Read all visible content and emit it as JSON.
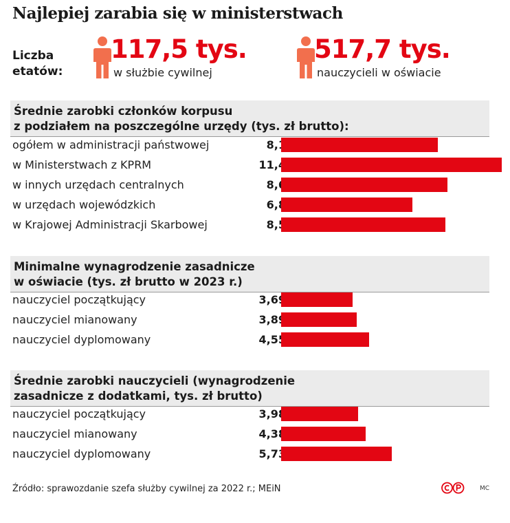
{
  "title": "Najlepiej zarabia się w ministerstwach",
  "count_label_line1": "Liczba",
  "count_label_line2": "etatów:",
  "stats": [
    {
      "value": "117,5 tys.",
      "label": "w służbie cywilnej"
    },
    {
      "value": "517,7 tys.",
      "label": "nauczycieli w oświacie"
    }
  ],
  "colors": {
    "bar": "#e30613",
    "icon": "#f26f4d",
    "section_bg": "#ebebeb"
  },
  "icons": [
    "person-icon",
    "copyright-logo"
  ],
  "chart_data": [
    {
      "type": "bar",
      "orientation": "horizontal",
      "title_line1": "Średnie zarobki członków korpusu",
      "title_line2": "z podziałem na poszczególne urzędy (tys. zł brutto):",
      "categories": [
        "ogółem w administracji państwowej",
        "w Ministerstwach z KPRM",
        "w innych urzędach centralnych",
        "w urzędach wojewódzkich",
        "w Krajowej Administracji Skarbowej"
      ],
      "values": [
        8.1,
        11.4,
        8.6,
        6.8,
        8.5
      ],
      "labels": [
        "8,1",
        "11,4",
        "8,6",
        "6,8",
        "8,5"
      ],
      "xlim": [
        0,
        11.4
      ]
    },
    {
      "type": "bar",
      "orientation": "horizontal",
      "title_line1": "Minimalne wynagrodzenie zasadnicze",
      "title_line2": "w oświacie (tys. zł brutto w 2023 r.)",
      "categories": [
        "nauczyciel początkujący",
        "nauczyciel mianowany",
        "nauczyciel dyplomowany"
      ],
      "values": [
        3.69,
        3.89,
        4.55
      ],
      "labels": [
        "3,69",
        "3,89",
        "4,55"
      ],
      "xlim": [
        0,
        11.4
      ]
    },
    {
      "type": "bar",
      "orientation": "horizontal",
      "title_line1": "Średnie zarobki nauczycieli (wynagrodzenie",
      "title_line2": "zasadnicze z dodatkami, tys. zł brutto)",
      "categories": [
        "nauczyciel początkujący",
        "nauczyciel mianowany",
        "nauczyciel dyplomowany"
      ],
      "values": [
        3.98,
        4.38,
        5.73
      ],
      "labels": [
        "3,98",
        "4,38",
        "5,73"
      ],
      "xlim": [
        0,
        11.4
      ]
    }
  ],
  "source": "Źródło: sprawozdanie szefa służby cywilnej za 2022 r.; MEiN",
  "author": "MC"
}
